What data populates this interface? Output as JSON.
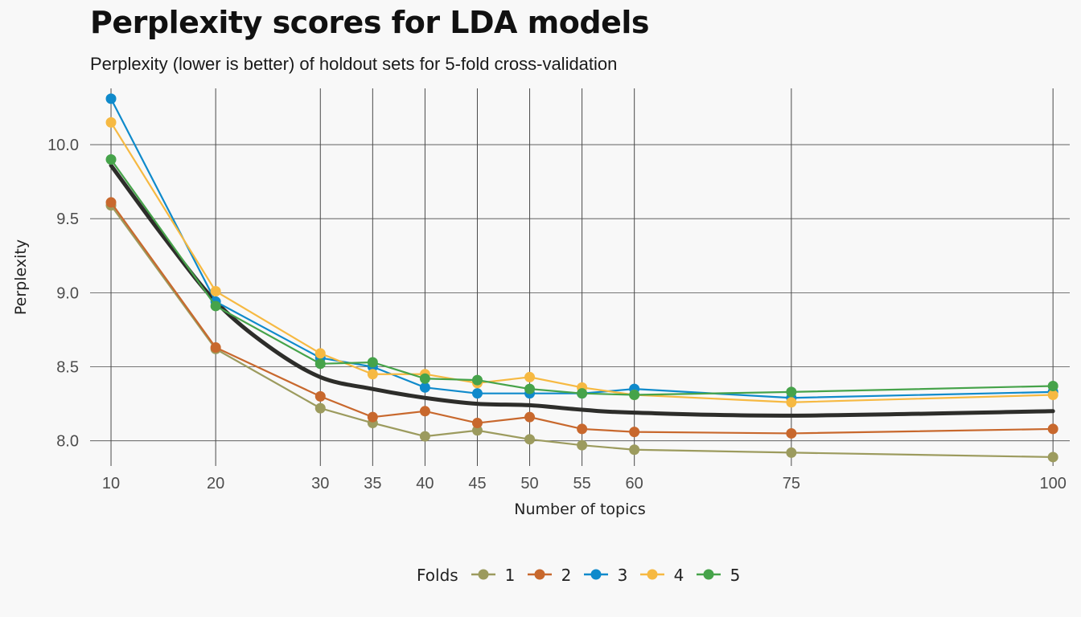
{
  "header": {
    "title": "Perplexity scores for LDA models",
    "subtitle": "Perplexity (lower is better) of holdout sets for 5-fold cross-validation"
  },
  "chart_data": {
    "type": "line",
    "title": "Perplexity scores for LDA models",
    "subtitle": "Perplexity (lower is better) of holdout sets for 5-fold cross-validation",
    "xlabel": "Number of topics",
    "ylabel": "Perplexity",
    "x": [
      10,
      20,
      30,
      35,
      40,
      45,
      50,
      55,
      60,
      75,
      100
    ],
    "x_ticks": [
      "10",
      "20",
      "30",
      "35",
      "40",
      "45",
      "50",
      "55",
      "60",
      "75",
      "100"
    ],
    "y_ticks": [
      "8.0",
      "8.5",
      "9.0",
      "9.5",
      "10.0"
    ],
    "y_tick_values": [
      8.0,
      8.5,
      9.0,
      9.5,
      10.0
    ],
    "xlim": [
      8,
      101.6
    ],
    "ylim": [
      7.83,
      10.38
    ],
    "grid": true,
    "legend": {
      "title": "Folds",
      "position": "bottom"
    },
    "series": [
      {
        "name": "1",
        "color": "#9c9b5e",
        "values": [
          9.59,
          8.62,
          8.22,
          8.12,
          8.03,
          8.07,
          8.01,
          7.97,
          7.94,
          7.92,
          7.89
        ]
      },
      {
        "name": "2",
        "color": "#c8682d",
        "values": [
          9.61,
          8.63,
          8.3,
          8.16,
          8.2,
          8.12,
          8.16,
          8.08,
          8.06,
          8.05,
          8.08
        ]
      },
      {
        "name": "3",
        "color": "#0f8acb",
        "values": [
          10.31,
          8.94,
          8.56,
          8.5,
          8.36,
          8.32,
          8.32,
          8.32,
          8.35,
          8.29,
          8.33
        ]
      },
      {
        "name": "4",
        "color": "#f6b942",
        "values": [
          10.15,
          9.01,
          8.59,
          8.45,
          8.45,
          8.39,
          8.43,
          8.36,
          8.31,
          8.26,
          8.31
        ]
      },
      {
        "name": "5",
        "color": "#46a34a",
        "values": [
          9.9,
          8.91,
          8.52,
          8.53,
          8.42,
          8.41,
          8.35,
          8.32,
          8.31,
          8.33,
          8.37
        ]
      }
    ],
    "smooth": {
      "color": "#2d2d2a",
      "x": [
        10,
        15,
        20,
        25,
        30,
        35,
        40,
        45,
        50,
        55,
        60,
        75,
        100
      ],
      "values": [
        9.86,
        9.38,
        8.94,
        8.64,
        8.43,
        8.35,
        8.29,
        8.25,
        8.24,
        8.21,
        8.19,
        8.17,
        8.2
      ]
    }
  }
}
